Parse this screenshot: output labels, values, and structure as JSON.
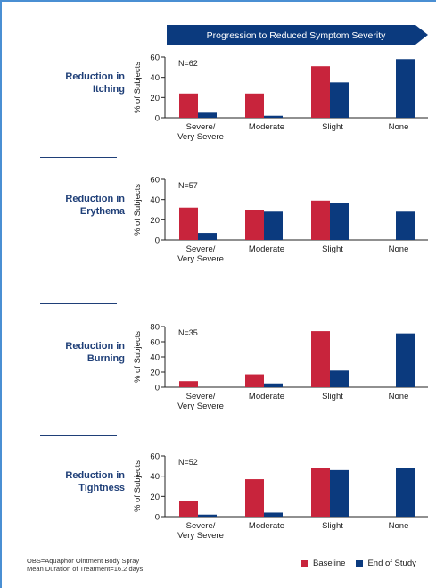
{
  "banner": "Progression to Reduced Symptom Severity",
  "colors": {
    "baseline": "#c8243c",
    "end": "#0b3a7e",
    "banner": "#0b3a7e",
    "label": "#1f3f78"
  },
  "legend": [
    "Baseline",
    "End of Study"
  ],
  "footnote": [
    "OBS=Aquaphor Ointment Body Spray",
    "Mean Duration of Treatment=16.2 days"
  ],
  "chart_data": [
    {
      "type": "bar",
      "label": [
        "Reduction in",
        "Itching"
      ],
      "n_label": "N=62",
      "ylabel": "% of Subjects",
      "ylim": [
        0,
        60
      ],
      "yticks": [
        0,
        20,
        40,
        60
      ],
      "categories": [
        [
          "Severe/",
          "Very Severe"
        ],
        [
          "Moderate"
        ],
        [
          "Slight"
        ],
        [
          "None"
        ]
      ],
      "series": [
        {
          "name": "Baseline",
          "values": [
            24,
            24,
            51,
            0
          ]
        },
        {
          "name": "End of Study",
          "values": [
            5,
            2,
            35,
            58
          ]
        }
      ]
    },
    {
      "type": "bar",
      "label": [
        "Reduction in",
        "Erythema"
      ],
      "n_label": "N=57",
      "ylabel": "% of Subjects",
      "ylim": [
        0,
        60
      ],
      "yticks": [
        0,
        20,
        40,
        60
      ],
      "categories": [
        [
          "Severe/",
          "Very Severe"
        ],
        [
          "Moderate"
        ],
        [
          "Slight"
        ],
        [
          "None"
        ]
      ],
      "series": [
        {
          "name": "Baseline",
          "values": [
            32,
            30,
            39,
            0
          ]
        },
        {
          "name": "End of Study",
          "values": [
            7,
            28,
            37,
            28
          ]
        }
      ]
    },
    {
      "type": "bar",
      "label": [
        "Reduction in",
        "Burning"
      ],
      "n_label": "N=35",
      "ylabel": "% of Subjects",
      "ylim": [
        0,
        80
      ],
      "yticks": [
        0,
        20,
        40,
        60,
        80
      ],
      "categories": [
        [
          "Severe/",
          "Very Severe"
        ],
        [
          "Moderate"
        ],
        [
          "Slight"
        ],
        [
          "None"
        ]
      ],
      "series": [
        {
          "name": "Baseline",
          "values": [
            8,
            17,
            74,
            0
          ]
        },
        {
          "name": "End of Study",
          "values": [
            0,
            5,
            22,
            71
          ]
        }
      ]
    },
    {
      "type": "bar",
      "label": [
        "Reduction in",
        "Tightness"
      ],
      "n_label": "N=52",
      "ylabel": "% of Subjects",
      "ylim": [
        0,
        60
      ],
      "yticks": [
        0,
        20,
        40,
        60
      ],
      "categories": [
        [
          "Severe/",
          "Very Severe"
        ],
        [
          "Moderate"
        ],
        [
          "Slight"
        ],
        [
          "None"
        ]
      ],
      "series": [
        {
          "name": "Baseline",
          "values": [
            15,
            37,
            48,
            0
          ]
        },
        {
          "name": "End of Study",
          "values": [
            2,
            4,
            46,
            48
          ]
        }
      ]
    }
  ]
}
